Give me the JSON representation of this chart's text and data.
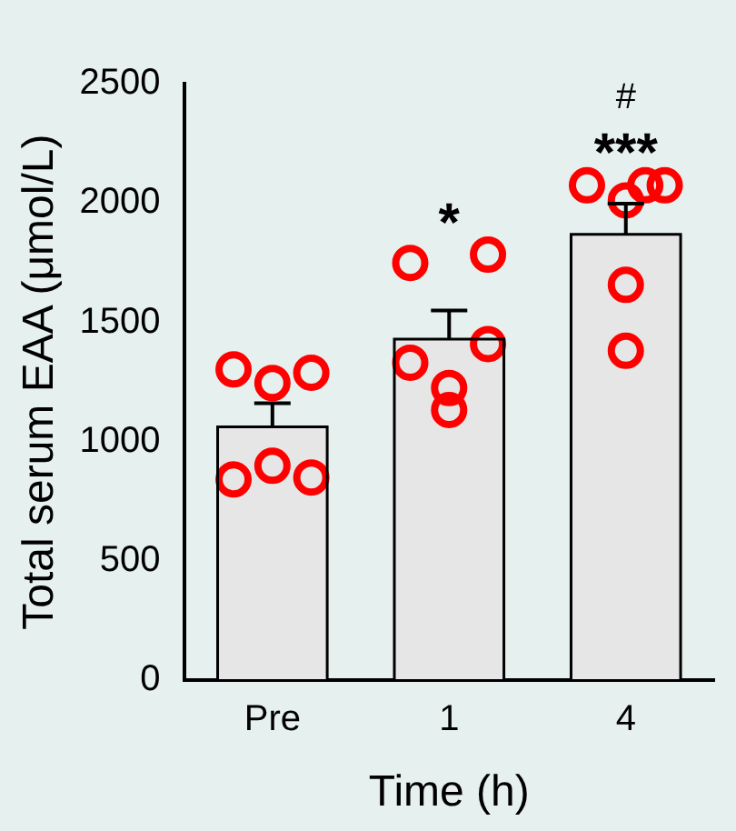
{
  "chart_data": {
    "type": "bar",
    "xlabel": "Time (h)",
    "ylabel": "Total serum EAA (μmol/L)",
    "categories": [
      "Pre",
      "1",
      "4"
    ],
    "series": [
      {
        "type": "bar",
        "color": "#e6e6e6",
        "values": [
          1062,
          1430,
          1869
        ],
        "errors": [
          99,
          120,
          128
        ]
      },
      {
        "type": "scatter",
        "color": "#ff0000",
        "x": [
          "Pre",
          "Pre",
          "Pre",
          "Pre",
          "Pre",
          "Pre",
          "1",
          "1",
          "1",
          "1",
          "1",
          "1",
          "4",
          "4",
          "4",
          "4",
          "4",
          "4"
        ],
        "values": [
          1303,
          1246,
          1289,
          842,
          899,
          850,
          1749,
          1225,
          1784,
          1331,
          1133,
          1409,
          2074,
          2011,
          2074,
          2074,
          1657,
          1381
        ]
      }
    ],
    "ylim": [
      0,
      2500
    ],
    "yticks": [
      0,
      500,
      1000,
      1500,
      2000,
      2500
    ],
    "grid": false,
    "legend": false,
    "marker": "circle",
    "annotations": [
      "*",
      "***",
      "#"
    ]
  }
}
